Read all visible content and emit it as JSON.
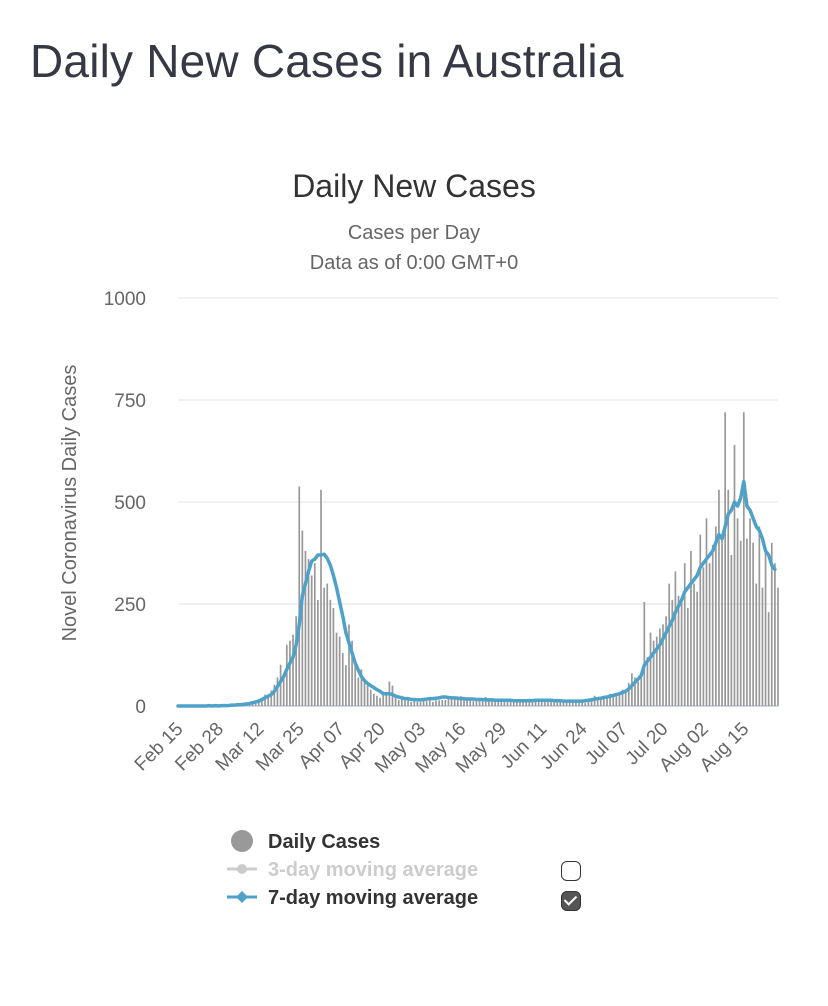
{
  "page": {
    "title": "Daily New Cases in Australia"
  },
  "chart_data": {
    "type": "bar",
    "title": "Daily New Cases",
    "subtitle": [
      "Cases per Day",
      "Data as of 0:00 GMT+0"
    ],
    "ylabel": "Novel Coronavirus Daily Cases",
    "xlabel": "",
    "ylim": [
      0,
      1000
    ],
    "yticks": [
      0,
      250,
      500,
      750,
      1000
    ],
    "grid": true,
    "x_start": "Feb 15",
    "x_tick_labels": [
      "Feb 15",
      "Feb 28",
      "Mar 12",
      "Mar 25",
      "Apr 07",
      "Apr 20",
      "May 03",
      "May 16",
      "May 29",
      "Jun 11",
      "Jun 24",
      "Jul 07",
      "Jul 20",
      "Aug 02",
      "Aug 15"
    ],
    "legend_placement": "bottom",
    "series": [
      {
        "name": "Daily Cases",
        "kind": "bar",
        "color": "#999999",
        "values": [
          0,
          0,
          0,
          1,
          0,
          0,
          0,
          1,
          0,
          0,
          1,
          0,
          1,
          0,
          1,
          2,
          1,
          3,
          2,
          4,
          4,
          3,
          6,
          7,
          12,
          10,
          16,
          20,
          28,
          25,
          38,
          52,
          70,
          101,
          78,
          150,
          160,
          175,
          220,
          538,
          430,
          380,
          360,
          320,
          350,
          260,
          530,
          290,
          300,
          260,
          240,
          180,
          170,
          130,
          100,
          200,
          160,
          100,
          70,
          90,
          60,
          50,
          40,
          30,
          25,
          20,
          35,
          30,
          60,
          50,
          20,
          15,
          25,
          20,
          15,
          10,
          15,
          10,
          10,
          15,
          12,
          15,
          10,
          14,
          14,
          15,
          15,
          18,
          16,
          20,
          16,
          24,
          20,
          16,
          14,
          12,
          18,
          20,
          15,
          22,
          16,
          18,
          12,
          10,
          15,
          18,
          14,
          16,
          10,
          12,
          10,
          14,
          14,
          18,
          12,
          16,
          14,
          12,
          14,
          10,
          16,
          14,
          12,
          10,
          16,
          8,
          10,
          12,
          14,
          10,
          16,
          8,
          12,
          20,
          25,
          20,
          22,
          25,
          18,
          30,
          26,
          28,
          32,
          40,
          38,
          56,
          80,
          70,
          60,
          75,
          255,
          120,
          180,
          160,
          170,
          190,
          200,
          220,
          300,
          260,
          330,
          270,
          260,
          350,
          240,
          380,
          300,
          280,
          420,
          340,
          460,
          350,
          395,
          440,
          530,
          410,
          720,
          530,
          370,
          640,
          460,
          405,
          720,
          410,
          460,
          400,
          300,
          440,
          290,
          380,
          230,
          400,
          350,
          290
        ]
      },
      {
        "name": "3-day moving average",
        "kind": "line",
        "color": "#c8c8c8",
        "visible": false,
        "values": []
      },
      {
        "name": "7-day moving average",
        "kind": "line",
        "color": "#4ea1c8",
        "visible": true,
        "values": [
          0,
          0,
          0,
          0,
          0,
          0,
          0,
          0,
          0,
          0,
          1,
          0,
          1,
          0,
          1,
          1,
          1,
          2,
          2,
          3,
          3,
          4,
          5,
          6,
          8,
          10,
          12,
          16,
          20,
          24,
          28,
          36,
          48,
          60,
          72,
          90,
          105,
          120,
          150,
          200,
          270,
          300,
          330,
          355,
          360,
          370,
          370,
          372,
          362,
          345,
          320,
          290,
          255,
          220,
          180,
          155,
          130,
          105,
          88,
          72,
          62,
          55,
          50,
          45,
          40,
          36,
          30,
          30,
          30,
          28,
          24,
          22,
          20,
          18,
          18,
          16,
          16,
          15,
          15,
          16,
          17,
          18,
          18,
          19,
          20,
          22,
          22,
          21,
          20,
          20,
          19,
          18,
          18,
          17,
          17,
          17,
          16,
          16,
          16,
          15,
          15,
          15,
          14,
          14,
          14,
          14,
          14,
          14,
          13,
          13,
          13,
          13,
          13,
          13,
          13,
          14,
          14,
          14,
          14,
          14,
          14,
          13,
          13,
          13,
          12,
          12,
          12,
          12,
          12,
          12,
          12,
          13,
          14,
          15,
          17,
          18,
          19,
          21,
          22,
          24,
          26,
          28,
          30,
          33,
          36,
          42,
          50,
          58,
          66,
          75,
          100,
          110,
          120,
          130,
          140,
          150,
          165,
          180,
          195,
          210,
          230,
          245,
          260,
          280,
          290,
          300,
          310,
          320,
          340,
          350,
          360,
          370,
          380,
          400,
          420,
          410,
          440,
          470,
          480,
          500,
          490,
          510,
          550,
          490,
          480,
          460,
          440,
          430,
          410,
          380,
          370,
          345,
          335
        ]
      }
    ]
  },
  "legend_checkboxes": {
    "sma3": "unchecked",
    "sma7": "checked"
  }
}
